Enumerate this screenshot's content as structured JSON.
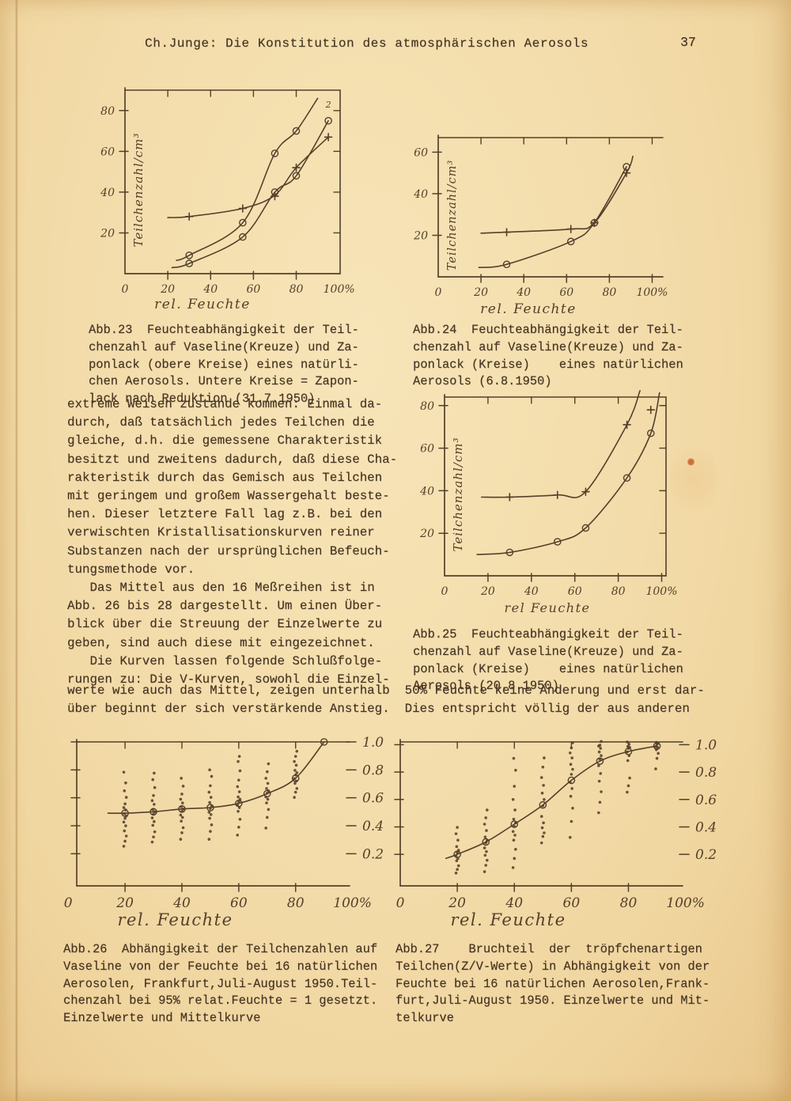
{
  "colors": {
    "paper": "#f3dcaa",
    "text_ink": "#453322",
    "chart_ink": "#54402a",
    "stain": "#c2521f"
  },
  "header": {
    "title": "Ch.Junge: Die Konstitution des atmosphärischen Aerosols",
    "page_number": "37"
  },
  "body": {
    "left_lines": [
      "extreme Weisen zustande kommen: Einmal da-",
      "durch, daß tatsächlich jedes Teilchen die",
      "gleiche, d.h. die gemessene Charakteristik",
      "besitzt und zweitens dadurch, daß diese Cha-",
      "rakteristik durch das Gemisch aus Teilchen",
      "mit geringem und großem Wassergehalt beste-",
      "hen. Dieser letztere Fall lag z.B. bei den",
      "verwischten Kristallisationskurven reiner",
      "Substanzen nach der ursprünglichen Befeuch-",
      "tungsmethode vor.",
      "   Das Mittel aus den 16 Meßreihen ist in",
      "Abb. 26 bis 28 dargestellt. Um einen Über-",
      "blick über die Streuung der Einzelwerte zu",
      "geben, sind auch diese mit eingezeichnet.",
      "   Die Kurven lassen folgende Schlußfolge-",
      "rungen zu: Die V-Kurven, sowohl die Einzel-"
    ],
    "full_lines": [
      "werte wie auch das Mittel, zeigen unterhalb  50% Feuchte keine Änderung und erst dar-",
      "über beginnt der sich verstärkende Anstieg.  Dies entspricht völlig der aus anderen"
    ]
  },
  "captions": {
    "abb23": [
      "Abb.23  Feuchteabhängigkeit der Teil-",
      "chenzahl auf Vaseline(Kreuze) und Za-",
      "ponlack (obere Kreise) eines natürli-",
      "chen Aerosols. Untere Kreise = Zapon-",
      "lack nach Reduktion (31.7.1950)"
    ],
    "abb24": [
      "Abb.24  Feuchteabhängigkeit der Teil-",
      "chenzahl auf Vaseline(Kreuze) und Za-",
      "ponlack (Kreise)    eines natürlichen",
      "Aerosols (6.8.1950)"
    ],
    "abb25": [
      "Abb.25  Feuchteabhängigkeit der Teil-",
      "chenzahl auf Vaseline(Kreuze) und Za-",
      "ponlack (Kreise)    eines natürlichen",
      "Aerosols (20.8.1950)"
    ],
    "abb26": [
      "Abb.26  Abhängigkeit der Teilchenzahlen auf",
      "Vaseline von der Feuchte bei 16 natürlichen",
      "Aerosolen, Frankfurt,Juli-August 1950.Teil-",
      "chenzahl bei 95% relat.Feuchte = 1 gesetzt.",
      "Einzelwerte und Mittelkurve"
    ],
    "abb27": [
      "Abb.27    Bruchteil  der  tröpfchenartigen",
      "Teilchen(Z/V-Werte) in Abhängigkeit von der",
      "Feuchte bei 16 natürlichen Aerosolen,Frank-",
      "furt,Juli-August 1950. Einzelwerte und Mit-",
      "telkurve"
    ]
  },
  "chart_data": [
    {
      "id": "abb23",
      "type": "line",
      "ylabel": "Teilchenzahl/cm³",
      "xlabel": "rel. Feuchte",
      "xlim": [
        0,
        100.5
      ],
      "ylim": [
        0,
        90
      ],
      "xticks": {
        "values": [
          0,
          20,
          40,
          60,
          80,
          100
        ],
        "labels": [
          "0",
          "20",
          "40",
          "60",
          "80",
          "100%"
        ]
      },
      "yticks": {
        "values": [
          20,
          40,
          60,
          80
        ],
        "labels": [
          "20",
          "40",
          "60",
          "80"
        ],
        "side": "left"
      },
      "frame": [
        "left",
        "bottom",
        "top",
        "right"
      ],
      "margins": {
        "l": 60,
        "t": 22,
        "r": 40,
        "b": 62
      },
      "fs": {
        "tick": 14,
        "label": 17,
        "ylabel": 15
      },
      "xlabel_dx": -38,
      "xlabel_dy": 44,
      "series": [
        {
          "name": "Vaseline (Kreuze)",
          "marker": "plus",
          "path_x": [
            20,
            30,
            55,
            70,
            80,
            95
          ],
          "path_y": [
            27.5,
            28,
            32,
            38.5,
            52,
            67
          ],
          "x": [
            30,
            55,
            70,
            80,
            95
          ],
          "y": [
            28,
            32,
            38,
            52,
            67
          ]
        },
        {
          "name": "Zaponlack (obere Kreise)",
          "marker": "circle",
          "path_x": [
            24,
            30,
            55,
            70,
            80,
            90
          ],
          "path_y": [
            6.5,
            9,
            25,
            59,
            70,
            86
          ],
          "x": [
            30,
            55,
            70,
            80
          ],
          "y": [
            9,
            25,
            59,
            70
          ]
        },
        {
          "name": "Zaponlack nach Reduktion (untere Kreise)",
          "marker": "circle",
          "path_x": [
            22,
            30,
            55,
            70,
            80,
            95
          ],
          "path_y": [
            3,
            5,
            18,
            40,
            48,
            75
          ],
          "x": [
            30,
            55,
            70,
            80,
            95
          ],
          "y": [
            5,
            18,
            40,
            48,
            75
          ]
        }
      ],
      "annotations": [
        {
          "text": "2",
          "x": 95,
          "y": 81.5
        }
      ]
    },
    {
      "id": "abb24",
      "type": "line",
      "ylabel": "Teilchenzahl/cm³",
      "xlabel": "rel. Feuchte",
      "xlim": [
        0,
        105
      ],
      "ylim": [
        0,
        67
      ],
      "xticks": {
        "values": [
          0,
          20,
          40,
          60,
          80,
          100
        ],
        "labels": [
          "0",
          "20",
          "40",
          "60",
          "80",
          "100%"
        ]
      },
      "yticks": {
        "values": [
          20,
          40,
          60
        ],
        "labels": [
          "20",
          "40",
          "60"
        ],
        "side": "left"
      },
      "frame": [
        "left",
        "bottom",
        "top"
      ],
      "margins": {
        "l": 32,
        "t": 18,
        "r": 40,
        "b": 58
      },
      "fs": {
        "tick": 14,
        "label": 17,
        "ylabel": 14.5
      },
      "xlabel_dx": -28,
      "xlabel_dy": 46,
      "series": [
        {
          "name": "Vaseline (Kreuze)",
          "marker": "plus",
          "path_x": [
            20,
            32,
            62,
            73,
            88,
            91
          ],
          "path_y": [
            21,
            21.5,
            23,
            26,
            50,
            58
          ],
          "x": [
            32,
            62,
            73,
            88
          ],
          "y": [
            21.5,
            23,
            26,
            50
          ]
        },
        {
          "name": "Zaponlack (Kreise)",
          "marker": "circle",
          "path_x": [
            19,
            32,
            62,
            73,
            88
          ],
          "path_y": [
            4.5,
            6,
            17,
            26,
            53
          ],
          "x": [
            32,
            62,
            73,
            88
          ],
          "y": [
            6,
            17,
            26,
            53
          ]
        }
      ],
      "annotations": []
    },
    {
      "id": "abb25",
      "type": "line",
      "ylabel": "Teilchenzahl/cm³",
      "xlabel": "rel Feuchte",
      "xlim": [
        0,
        102
      ],
      "ylim": [
        0,
        84
      ],
      "xticks": {
        "values": [
          0,
          20,
          40,
          60,
          80,
          100
        ],
        "labels": [
          "0",
          "20",
          "40",
          "60",
          "80",
          "100%"
        ]
      },
      "yticks": {
        "values": [
          20,
          40,
          60,
          80
        ],
        "labels": [
          "20",
          "40",
          "60",
          "80"
        ],
        "side": "left"
      },
      "frame": [
        "left",
        "bottom",
        "top",
        "right"
      ],
      "margins": {
        "l": 34,
        "t": 16,
        "r": 36,
        "b": 64
      },
      "fs": {
        "tick": 14,
        "label": 16,
        "ylabel": 15
      },
      "xlabel_dx": -10,
      "xlabel_dy": 46,
      "series": [
        {
          "name": "Vaseline (Kreuze)",
          "marker": "plus",
          "path_x": [
            17,
            30,
            52,
            65,
            84,
            90
          ],
          "path_y": [
            37,
            37,
            38,
            39.5,
            71,
            87
          ],
          "x": [
            30,
            52,
            65,
            84,
            95
          ],
          "y": [
            37,
            38,
            39.5,
            71,
            78
          ]
        },
        {
          "name": "Zaponlack (Kreise)",
          "marker": "circle",
          "path_x": [
            15,
            30,
            52,
            65,
            84,
            95,
            99
          ],
          "path_y": [
            10,
            11,
            16,
            22.5,
            46,
            67,
            86
          ],
          "x": [
            30,
            52,
            65,
            84,
            95
          ],
          "y": [
            11,
            16,
            22.5,
            46,
            67
          ]
        }
      ],
      "annotations": []
    },
    {
      "id": "abb26",
      "type": "scatter",
      "ylabel": "",
      "xlabel": "rel. Feuchte",
      "xlim": [
        3,
        99
      ],
      "ylim": [
        -0.03,
        1.0
      ],
      "xticks": {
        "values": [
          0,
          20,
          40,
          60,
          80,
          100
        ],
        "labels": [
          "0",
          "20",
          "40",
          "60",
          "80",
          "100%"
        ]
      },
      "yticks": {
        "values": [
          0.2,
          0.4,
          0.6,
          0.8,
          1.0
        ],
        "labels": [
          "0.2",
          "0.4",
          "0.6",
          "0.8",
          "1.0"
        ],
        "side": "right"
      },
      "frame": [
        "left",
        "bottom",
        "top"
      ],
      "margins": {
        "l": 27,
        "t": 14,
        "r": 68,
        "b": 56
      },
      "fs": {
        "tick": 17,
        "label": 21,
        "ylabel": 15
      },
      "xlabel_dx": -48,
      "xlabel_dy": 50,
      "series": [
        {
          "name": "Mittelkurve",
          "marker": "circle",
          "path_x": [
            14,
            20,
            30,
            40,
            50,
            60,
            70,
            80,
            90
          ],
          "path_y": [
            0.49,
            0.49,
            0.5,
            0.52,
            0.53,
            0.56,
            0.63,
            0.74,
            1.0
          ],
          "x": [
            20,
            30,
            40,
            50,
            60,
            70,
            80,
            90
          ],
          "y": [
            0.49,
            0.5,
            0.52,
            0.53,
            0.56,
            0.63,
            0.74,
            1.0
          ]
        }
      ],
      "scatter": [
        {
          "x": 20,
          "ys": [
            0.25,
            0.29,
            0.33,
            0.36,
            0.4,
            0.43,
            0.45,
            0.47,
            0.49,
            0.51,
            0.53,
            0.56,
            0.6,
            0.65,
            0.71,
            0.78
          ]
        },
        {
          "x": 30,
          "ys": [
            0.28,
            0.32,
            0.36,
            0.4,
            0.43,
            0.46,
            0.48,
            0.5,
            0.52,
            0.55,
            0.58,
            0.62,
            0.67,
            0.73,
            0.78
          ]
        },
        {
          "x": 40,
          "ys": [
            0.3,
            0.35,
            0.39,
            0.43,
            0.46,
            0.48,
            0.5,
            0.52,
            0.54,
            0.56,
            0.59,
            0.63,
            0.68,
            0.74
          ]
        },
        {
          "x": 50,
          "ys": [
            0.3,
            0.36,
            0.41,
            0.45,
            0.48,
            0.5,
            0.52,
            0.54,
            0.57,
            0.6,
            0.64,
            0.69,
            0.75,
            0.8
          ]
        },
        {
          "x": 60,
          "ys": [
            0.33,
            0.39,
            0.45,
            0.5,
            0.53,
            0.55,
            0.57,
            0.59,
            0.61,
            0.64,
            0.68,
            0.73,
            0.79,
            0.86,
            0.9
          ]
        },
        {
          "x": 70,
          "ys": [
            0.38,
            0.46,
            0.52,
            0.56,
            0.59,
            0.61,
            0.63,
            0.65,
            0.67,
            0.7,
            0.74,
            0.79,
            0.84
          ]
        },
        {
          "x": 80,
          "ys": [
            0.6,
            0.64,
            0.67,
            0.7,
            0.72,
            0.74,
            0.76,
            0.78,
            0.8,
            0.83,
            0.86,
            0.9,
            0.93
          ]
        }
      ],
      "annotations": []
    },
    {
      "id": "abb27",
      "type": "scatter",
      "ylabel": "",
      "xlabel": "rel. Feuchte",
      "xlim": [
        0,
        99
      ],
      "ylim": [
        -0.03,
        1.02
      ],
      "xticks": {
        "values": [
          0,
          20,
          40,
          60,
          80,
          100
        ],
        "labels": [
          "0",
          "20",
          "40",
          "60",
          "80",
          "100%"
        ]
      },
      "yticks": {
        "values": [
          0.2,
          0.4,
          0.6,
          0.8,
          1.0
        ],
        "labels": [
          "0.2",
          "0.4",
          "0.6",
          "0.8",
          "1.0"
        ],
        "side": "right"
      },
      "frame": [
        "left",
        "bottom",
        "top"
      ],
      "margins": {
        "l": 16,
        "t": 14,
        "r": 75,
        "b": 56
      },
      "fs": {
        "tick": 17,
        "label": 21,
        "ylabel": 15
      },
      "xlabel_dx": -42,
      "xlabel_dy": 50,
      "series": [
        {
          "name": "Mittelkurve",
          "marker": "circle",
          "path_x": [
            16,
            20,
            30,
            40,
            50,
            60,
            70,
            80,
            90
          ],
          "path_y": [
            0.17,
            0.2,
            0.29,
            0.42,
            0.56,
            0.74,
            0.88,
            0.95,
            0.99
          ],
          "x": [
            20,
            30,
            40,
            50,
            60,
            70,
            80,
            90
          ],
          "y": [
            0.2,
            0.29,
            0.42,
            0.56,
            0.74,
            0.88,
            0.95,
            0.99
          ]
        }
      ],
      "scatter": [
        {
          "x": 20,
          "ys": [
            0.06,
            0.09,
            0.12,
            0.15,
            0.17,
            0.19,
            0.21,
            0.23,
            0.26,
            0.3,
            0.35,
            0.4
          ]
        },
        {
          "x": 30,
          "ys": [
            0.07,
            0.12,
            0.16,
            0.19,
            0.22,
            0.25,
            0.28,
            0.3,
            0.33,
            0.37,
            0.42,
            0.47,
            0.52
          ]
        },
        {
          "x": 40,
          "ys": [
            0.1,
            0.17,
            0.24,
            0.3,
            0.34,
            0.37,
            0.4,
            0.43,
            0.46,
            0.52,
            0.6,
            0.7,
            0.81,
            0.9
          ]
        },
        {
          "x": 50,
          "ys": [
            0.28,
            0.33,
            0.36,
            0.39,
            0.43,
            0.48,
            0.55,
            0.6,
            0.65,
            0.7,
            0.76,
            0.84,
            0.9
          ]
        },
        {
          "x": 60,
          "ys": [
            0.32,
            0.44,
            0.54,
            0.62,
            0.68,
            0.73,
            0.78,
            0.82,
            0.86,
            0.9,
            0.94,
            0.98,
            1.01
          ]
        },
        {
          "x": 70,
          "ys": [
            0.5,
            0.58,
            0.66,
            0.73,
            0.79,
            0.85,
            0.89,
            0.92,
            0.95,
            0.97,
            0.99,
            1.0,
            1.02
          ]
        },
        {
          "x": 80,
          "ys": [
            0.65,
            0.7,
            0.76,
            0.88,
            0.92,
            0.95,
            0.97,
            0.98,
            0.99,
            1.0,
            1.02
          ]
        },
        {
          "x": 90,
          "ys": [
            0.82,
            0.9,
            0.94,
            0.96,
            0.98,
            0.99,
            1.0,
            1.01,
            1.02
          ]
        }
      ],
      "annotations": []
    }
  ]
}
